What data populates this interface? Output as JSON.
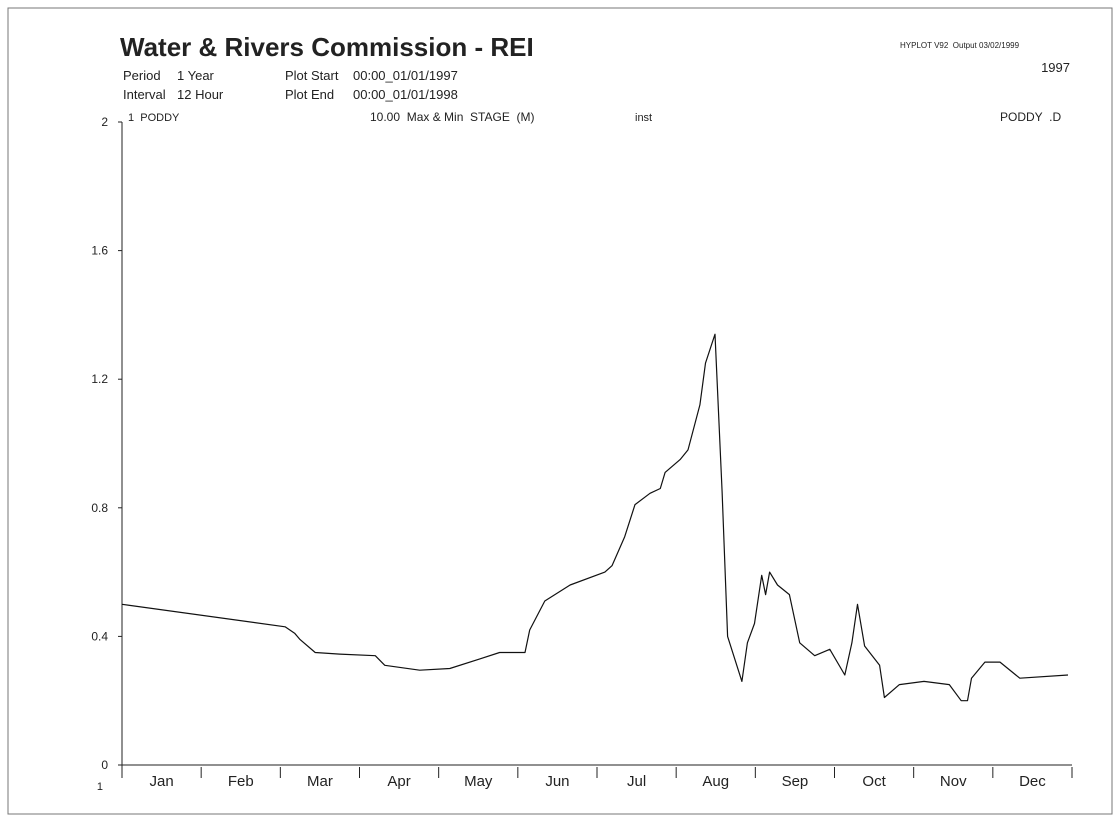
{
  "chart_data": {
    "type": "line",
    "title": "Water & Rivers Commission - REI",
    "header": {
      "period_label": "Period",
      "period": "1 Year",
      "interval_label": "Interval",
      "interval": "12 Hour",
      "plot_start_label": "Plot Start",
      "plot_start": "00:00_01/01/1997",
      "plot_end_label": "Plot End",
      "plot_end": "00:00_01/01/1998",
      "program": "HYPLOT V92  Output 03/02/1999",
      "year": "1997",
      "variable": "10.00  Max & Min  STAGE  (M)",
      "mode": "inst",
      "site_code": "PODDY  .D",
      "axis_number": "1"
    },
    "categories": [
      "Jan",
      "Feb",
      "Mar",
      "Apr",
      "May",
      "Jun",
      "Jul",
      "Aug",
      "Sep",
      "Oct",
      "Nov",
      "Dec"
    ],
    "xlim": [
      0,
      12
    ],
    "xticks": [
      0,
      1,
      2,
      3,
      4,
      5,
      6,
      7,
      8,
      9,
      10,
      11,
      12
    ],
    "ylim": [
      0,
      2
    ],
    "yticks": [
      0,
      0.4,
      0.8,
      1.2,
      1.6,
      2
    ],
    "series": [
      {
        "name": "1  PODDY",
        "color": "#111111",
        "x": [
          0,
          2.06,
          2.18,
          2.25,
          2.44,
          2.75,
          3.2,
          3.32,
          3.76,
          4.14,
          4.52,
          4.77,
          5.09,
          5.15,
          5.34,
          5.66,
          6.1,
          6.19,
          6.35,
          6.48,
          6.67,
          6.8,
          6.86,
          7.05,
          7.15,
          7.3,
          7.37,
          7.49,
          7.58,
          7.65,
          7.83,
          7.9,
          7.99,
          8.08,
          8.13,
          8.18,
          8.28,
          8.43,
          8.56,
          8.75,
          8.94,
          9.13,
          9.22,
          9.29,
          9.38,
          9.57,
          9.63,
          9.82,
          10.13,
          10.45,
          10.6,
          10.68,
          10.73,
          10.9,
          11.09,
          11.34,
          11.95
        ],
        "values": [
          0.5,
          0.43,
          0.41,
          0.39,
          0.35,
          0.345,
          0.34,
          0.31,
          0.295,
          0.3,
          0.33,
          0.35,
          0.35,
          0.42,
          0.51,
          0.56,
          0.6,
          0.62,
          0.71,
          0.81,
          0.845,
          0.86,
          0.91,
          0.95,
          0.98,
          1.12,
          1.25,
          1.34,
          0.85,
          0.4,
          0.26,
          0.38,
          0.44,
          0.59,
          0.53,
          0.6,
          0.56,
          0.53,
          0.38,
          0.34,
          0.36,
          0.28,
          0.38,
          0.5,
          0.37,
          0.31,
          0.21,
          0.25,
          0.26,
          0.25,
          0.2,
          0.2,
          0.27,
          0.32,
          0.32,
          0.27,
          0.28
        ]
      }
    ]
  }
}
